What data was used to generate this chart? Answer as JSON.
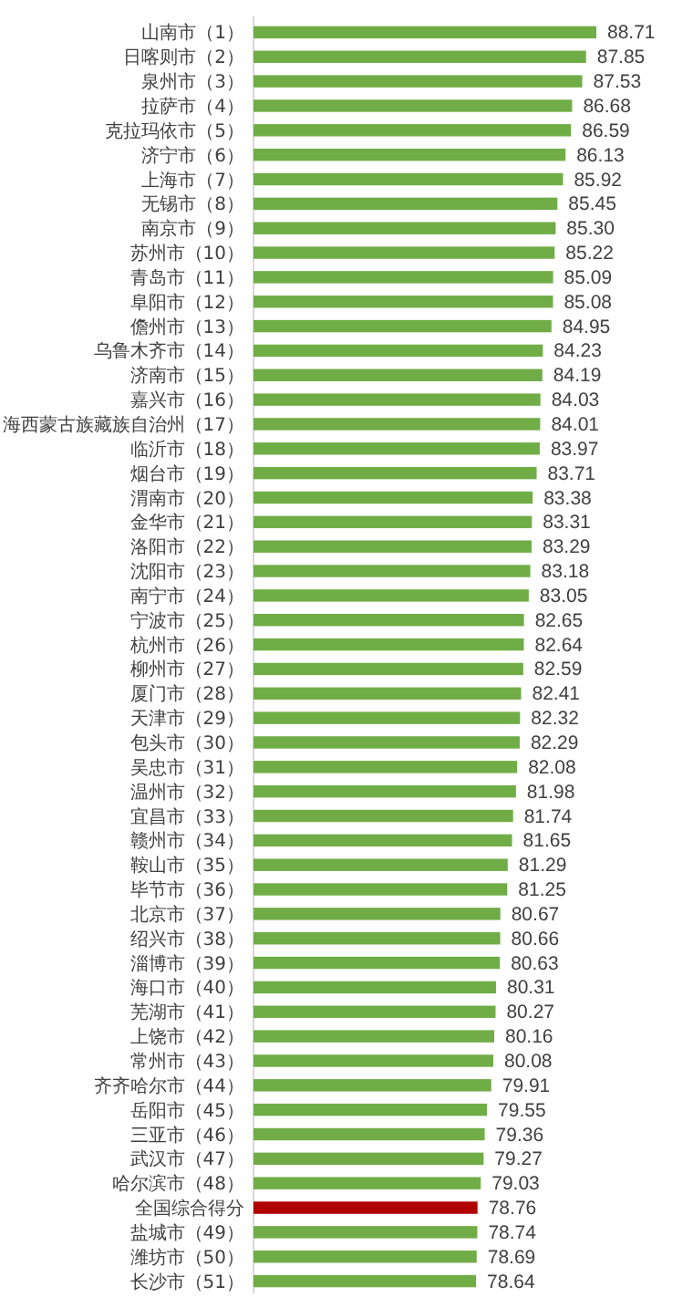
{
  "chart_data": {
    "type": "bar",
    "orientation": "horizontal",
    "categories": [
      "山南市（1）",
      "日喀则市（2）",
      "泉州市（3）",
      "拉萨市（4）",
      "克拉玛依市（5）",
      "济宁市（6）",
      "上海市（7）",
      "无锡市（8）",
      "南京市（9）",
      "苏州市（10）",
      "青岛市（11）",
      "阜阳市（12）",
      "儋州市（13）",
      "乌鲁木齐市（14）",
      "济南市（15）",
      "嘉兴市（16）",
      "海西蒙古族藏族自治州（17）",
      "临沂市（18）",
      "烟台市（19）",
      "渭南市（20）",
      "金华市（21）",
      "洛阳市（22）",
      "沈阳市（23）",
      "南宁市（24）",
      "宁波市（25）",
      "杭州市（26）",
      "柳州市（27）",
      "厦门市（28）",
      "天津市（29）",
      "包头市（30）",
      "吴忠市（31）",
      "温州市（32）",
      "宜昌市（33）",
      "赣州市（34）",
      "鞍山市（35）",
      "毕节市（36）",
      "北京市（37）",
      "绍兴市（38）",
      "淄博市（39）",
      "海口市（40）",
      "芜湖市（41）",
      "上饶市（42）",
      "常州市（43）",
      "齐齐哈尔市（44）",
      "岳阳市（45）",
      "三亚市（46）",
      "武汉市（47）",
      "哈尔滨市（48）",
      "全国综合得分",
      "盐城市（49）",
      "潍坊市（50）",
      "长沙市（51）"
    ],
    "values": [
      88.71,
      87.85,
      87.53,
      86.68,
      86.59,
      86.13,
      85.92,
      85.45,
      85.3,
      85.22,
      85.09,
      85.08,
      84.95,
      84.23,
      84.19,
      84.03,
      84.01,
      83.97,
      83.71,
      83.38,
      83.31,
      83.29,
      83.18,
      83.05,
      82.65,
      82.64,
      82.59,
      82.41,
      82.32,
      82.29,
      82.08,
      81.98,
      81.74,
      81.65,
      81.29,
      81.25,
      80.67,
      80.66,
      80.63,
      80.31,
      80.27,
      80.16,
      80.08,
      79.91,
      79.55,
      79.36,
      79.27,
      79.03,
      78.76,
      78.74,
      78.69,
      78.64
    ],
    "colors": [
      "#70ad47",
      "#70ad47",
      "#70ad47",
      "#70ad47",
      "#70ad47",
      "#70ad47",
      "#70ad47",
      "#70ad47",
      "#70ad47",
      "#70ad47",
      "#70ad47",
      "#70ad47",
      "#70ad47",
      "#70ad47",
      "#70ad47",
      "#70ad47",
      "#70ad47",
      "#70ad47",
      "#70ad47",
      "#70ad47",
      "#70ad47",
      "#70ad47",
      "#70ad47",
      "#70ad47",
      "#70ad47",
      "#70ad47",
      "#70ad47",
      "#70ad47",
      "#70ad47",
      "#70ad47",
      "#70ad47",
      "#70ad47",
      "#70ad47",
      "#70ad47",
      "#70ad47",
      "#70ad47",
      "#70ad47",
      "#70ad47",
      "#70ad47",
      "#70ad47",
      "#70ad47",
      "#70ad47",
      "#70ad47",
      "#70ad47",
      "#70ad47",
      "#70ad47",
      "#70ad47",
      "#70ad47",
      "#b00000",
      "#70ad47",
      "#70ad47",
      "#70ad47"
    ],
    "value_labels": [
      "88.71",
      "87.85",
      "87.53",
      "86.68",
      "86.59",
      "86.13",
      "85.92",
      "85.45",
      "85.30",
      "85.22",
      "85.09",
      "85.08",
      "84.95",
      "84.23",
      "84.19",
      "84.03",
      "84.01",
      "83.97",
      "83.71",
      "83.38",
      "83.31",
      "83.29",
      "83.18",
      "83.05",
      "82.65",
      "82.64",
      "82.59",
      "82.41",
      "82.32",
      "82.29",
      "82.08",
      "81.98",
      "81.74",
      "81.65",
      "81.29",
      "81.25",
      "80.67",
      "80.66",
      "80.63",
      "80.31",
      "80.27",
      "80.16",
      "80.08",
      "79.91",
      "79.55",
      "79.36",
      "79.27",
      "79.03",
      "78.76",
      "78.74",
      "78.69",
      "78.64"
    ],
    "xlim": [
      60,
      88.71
    ],
    "tick_labels": "y"
  }
}
